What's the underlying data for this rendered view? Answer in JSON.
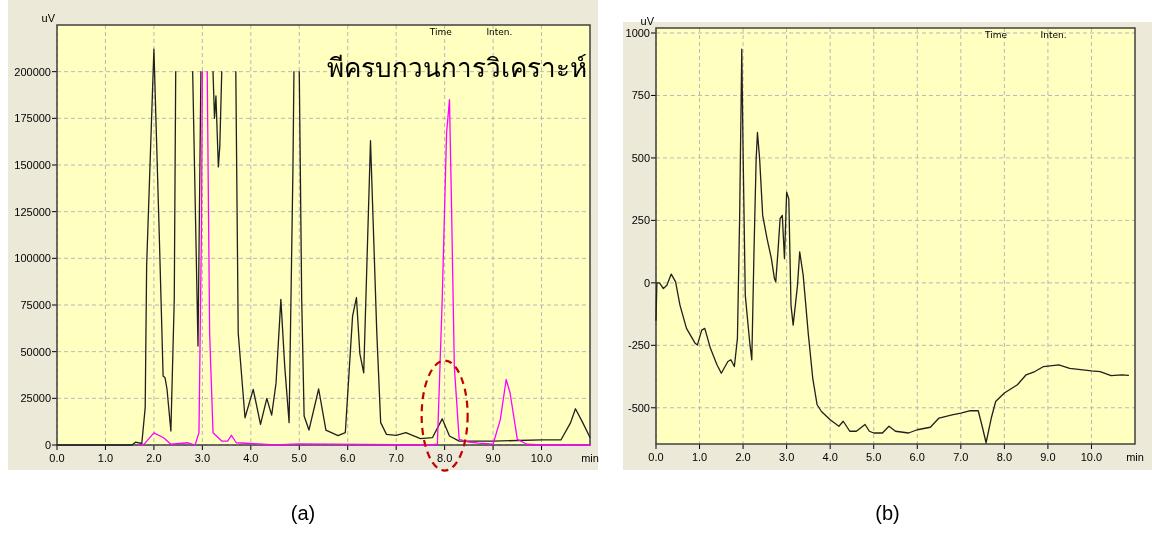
{
  "chart_data": [
    {
      "type": "line",
      "title": "(a)",
      "xlabel": "min",
      "ylabel": "uV",
      "grid": true,
      "annotations": [
        "Time",
        "Inten.",
        "พีครบกวนการวิเคราะห์"
      ],
      "xlim": [
        0,
        11
      ],
      "ylim": [
        0,
        225000
      ],
      "xticks": [
        {
          "value": 0,
          "label": "0.0"
        },
        {
          "value": 1,
          "label": "1.0"
        },
        {
          "value": 2,
          "label": "2.0"
        },
        {
          "value": 3,
          "label": "3.0"
        },
        {
          "value": 4,
          "label": "4.0"
        },
        {
          "value": 5,
          "label": "5.0"
        },
        {
          "value": 6,
          "label": "6.0"
        },
        {
          "value": 7,
          "label": "7.0"
        },
        {
          "value": 8,
          "label": "8.0"
        },
        {
          "value": 9,
          "label": "9.0"
        },
        {
          "value": 10,
          "label": "10.0"
        }
      ],
      "yticks": [
        0,
        25000,
        50000,
        75000,
        100000,
        125000,
        150000,
        175000,
        200000
      ],
      "series": [
        {
          "color": "#202020",
          "x": [
            0,
            1.55,
            1.62,
            1.75,
            1.82,
            1.85,
            2.0,
            2.11,
            2.19,
            2.23,
            2.27,
            2.35,
            2.42,
            2.45
          ],
          "values": [
            0,
            0,
            1500,
            800,
            20000,
            96000,
            212000,
            113000,
            37000,
            36000,
            30000,
            7500,
            78000,
            200000
          ]
        },
        {
          "color": "#202020",
          "x": [
            2.8,
            2.91,
            2.97
          ],
          "values": [
            200000,
            53000,
            200000
          ]
        },
        {
          "color": "#202020",
          "x": [
            3.22,
            3.25,
            3.28,
            3.33,
            3.36,
            3.4
          ],
          "values": [
            200000,
            175000,
            187000,
            149000,
            160000,
            200000
          ]
        },
        {
          "color": "#202020",
          "x": [
            3.69,
            3.74,
            3.88,
            4.05,
            4.2,
            4.33,
            4.43,
            4.52,
            4.62,
            4.7,
            4.79,
            4.87,
            4.89
          ],
          "values": [
            200000,
            60000,
            14600,
            29800,
            11000,
            25000,
            16000,
            33000,
            78000,
            42000,
            12000,
            149000,
            200000
          ]
        },
        {
          "color": "#202020",
          "x": [
            5.0,
            5.05,
            5.1,
            5.2,
            5.4,
            5.55,
            5.8,
            5.95,
            6.1,
            6.18,
            6.25,
            6.33,
            6.47,
            6.6,
            6.68,
            6.8,
            7.0,
            7.2,
            7.5,
            7.75,
            7.95,
            8.1,
            8.3,
            9.0,
            10.0,
            10.4,
            10.6,
            10.7,
            10.85,
            11.0
          ],
          "values": [
            200000,
            78000,
            15500,
            8000,
            30000,
            8000,
            5000,
            6600,
            69000,
            79000,
            49000,
            38700,
            163000,
            60000,
            12000,
            5700,
            5200,
            6600,
            3400,
            4000,
            14000,
            4800,
            2100,
            2100,
            2700,
            2700,
            12000,
            19400,
            12000,
            4000
          ]
        },
        {
          "color": "#ff00ff",
          "x": [
            1.7,
            1.8,
            2.0,
            2.2,
            2.35,
            2.7,
            2.85,
            2.93,
            2.98,
            3.0
          ],
          "values": [
            0,
            500,
            6500,
            3900,
            400,
            1200,
            0,
            6600,
            113000,
            200000
          ]
        },
        {
          "color": "#ff00ff",
          "x": [
            3.1,
            3.15,
            3.22,
            3.4,
            3.52,
            3.6,
            3.7,
            4.0,
            4.5,
            5.0,
            7.7,
            7.85,
            7.95,
            8.04,
            8.1,
            8.14,
            8.2,
            8.3,
            8.5,
            8.7,
            9.0,
            9.15,
            9.27,
            9.35,
            9.5,
            9.7,
            10.0,
            11.0
          ],
          "values": [
            200000,
            60000,
            6600,
            2100,
            2100,
            5200,
            1200,
            800,
            0,
            600,
            0,
            400,
            78000,
            167000,
            185000,
            131000,
            42000,
            3000,
            1600,
            1000,
            400,
            13700,
            35100,
            28000,
            3000,
            400,
            0,
            0
          ]
        }
      ]
    },
    {
      "type": "line",
      "title": "(b)",
      "xlabel": "min",
      "ylabel": "uV",
      "grid": true,
      "annotations": [
        "Time",
        "Inten."
      ],
      "xlim": [
        0,
        11
      ],
      "ylim": [
        -645,
        1020
      ],
      "xticks": [
        {
          "value": 0,
          "label": "0.0"
        },
        {
          "value": 1,
          "label": "1.0"
        },
        {
          "value": 2,
          "label": "2.0"
        },
        {
          "value": 3,
          "label": "3.0"
        },
        {
          "value": 4,
          "label": "4.0"
        },
        {
          "value": 5,
          "label": "5.0"
        },
        {
          "value": 6,
          "label": "6.0"
        },
        {
          "value": 7,
          "label": "7.0"
        },
        {
          "value": 8,
          "label": "8.0"
        },
        {
          "value": 9,
          "label": "9.0"
        },
        {
          "value": 10,
          "label": "10.0"
        }
      ],
      "yticks": [
        -500,
        -250,
        0,
        250,
        500,
        750,
        1000
      ],
      "series": [
        {
          "color": "#202020",
          "x": [
            0,
            0.02,
            0.08,
            0.17,
            0.25,
            0.35,
            0.45,
            0.55,
            0.7,
            0.9,
            0.95,
            1.05,
            1.12,
            1.25,
            1.4,
            1.5,
            1.65,
            1.72,
            1.8,
            1.87,
            1.92,
            1.97,
            2.0,
            2.05,
            2.15,
            2.2,
            2.25,
            2.3,
            2.33,
            2.38,
            2.45,
            2.55,
            2.65,
            2.72,
            2.75,
            2.8,
            2.85,
            2.9,
            2.95,
            3.0,
            3.05,
            3.1,
            3.15,
            3.25,
            3.3,
            3.38,
            3.5,
            3.6,
            3.7,
            3.8,
            4.0,
            4.1,
            4.2,
            4.3,
            4.45,
            4.6,
            4.8,
            4.9,
            5.0,
            5.2,
            5.35,
            5.5,
            5.8,
            6.0,
            6.3,
            6.5,
            6.8,
            7.0,
            7.2,
            7.4,
            7.5,
            7.58,
            7.7,
            7.8,
            8.0,
            8.3,
            8.5,
            8.7,
            8.9,
            9.25,
            9.5,
            9.8,
            10.0,
            10.2,
            10.45,
            10.7,
            10.85
          ],
          "values": [
            -150,
            0,
            0,
            -23,
            -10,
            35,
            4,
            -89,
            -182,
            -242,
            -249,
            -189,
            -182,
            -262,
            -328,
            -362,
            -315,
            -308,
            -335,
            -222,
            257,
            935,
            523,
            -49,
            -235,
            -308,
            124,
            496,
            602,
            496,
            270,
            177,
            97,
            17,
            4,
            124,
            257,
            270,
            97,
            363,
            336,
            -89,
            -169,
            -9,
            124,
            31,
            -209,
            -382,
            -488,
            -515,
            -548,
            -561,
            -574,
            -554,
            -594,
            -594,
            -567,
            -594,
            -601,
            -601,
            -574,
            -594,
            -601,
            -588,
            -578,
            -541,
            -528,
            -521,
            -512,
            -512,
            -581,
            -640,
            -541,
            -475,
            -441,
            -408,
            -368,
            -355,
            -335,
            -328,
            -342,
            -348,
            -352,
            -355,
            -371,
            -368,
            -370
          ]
        }
      ]
    }
  ]
}
